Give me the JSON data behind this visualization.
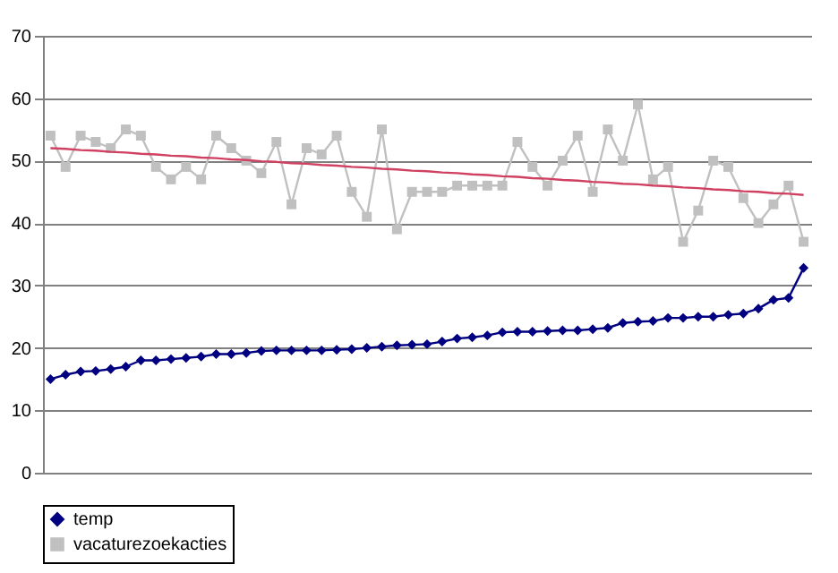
{
  "chart_data": {
    "type": "line",
    "categories": [
      null,
      null,
      null,
      null,
      null,
      null,
      null,
      null,
      null,
      null,
      null,
      null,
      null,
      null,
      null,
      null,
      null,
      null,
      null,
      null,
      null,
      null,
      null,
      null,
      null,
      null,
      null,
      null,
      null,
      null,
      null,
      null,
      null,
      null,
      null,
      null,
      null,
      null,
      null,
      null,
      null,
      null,
      null,
      null,
      null,
      null,
      null,
      null,
      null,
      null,
      null
    ],
    "ylim": [
      0,
      70
    ],
    "yticks": [
      0,
      10,
      20,
      30,
      40,
      50,
      60,
      70
    ],
    "grid": "y",
    "legend": "bottom",
    "tick_labels": "y",
    "line_style": "solid",
    "series": [
      {
        "name": "temp",
        "color": "#000080",
        "marker": "diamond",
        "values": [
          15,
          15.7,
          16.2,
          16.3,
          16.6,
          17,
          18,
          18,
          18.2,
          18.4,
          18.6,
          19,
          19,
          19.2,
          19.5,
          19.6,
          19.6,
          19.6,
          19.6,
          19.7,
          19.8,
          20,
          20.2,
          20.4,
          20.5,
          20.6,
          21,
          21.5,
          21.7,
          22,
          22.5,
          22.6,
          22.6,
          22.7,
          22.8,
          22.8,
          23,
          23.2,
          24,
          24.2,
          24.3,
          24.8,
          24.8,
          25,
          25,
          25.3,
          25.5,
          26.3,
          27.7,
          28,
          32.8
        ]
      },
      {
        "name": "vacaturezoekacties",
        "color": "#c0c0c0",
        "marker": "square",
        "values": [
          54,
          49,
          54,
          53,
          52,
          55,
          54,
          49,
          47,
          49,
          47,
          54,
          52,
          50,
          48,
          53,
          43,
          52,
          51,
          54,
          45,
          41,
          55,
          39,
          45,
          45,
          45,
          46,
          46,
          46,
          46,
          53,
          49,
          46,
          50,
          54,
          45,
          55,
          50,
          59,
          47,
          49,
          37,
          42,
          50,
          49,
          44,
          40,
          43,
          46,
          37
        ]
      },
      {
        "type": "line",
        "color": "#d04060",
        "marker": "none",
        "values": [
          52,
          51.9,
          51.7,
          51.6,
          51.4,
          51.3,
          51.1,
          51,
          50.8,
          50.7,
          50.5,
          50.4,
          50.2,
          50.1,
          49.9,
          49.8,
          49.6,
          49.5,
          49.3,
          49.2,
          49,
          48.9,
          48.7,
          48.6,
          48.4,
          48.3,
          48.1,
          48,
          47.8,
          47.7,
          47.5,
          47.4,
          47.2,
          47.1,
          46.9,
          46.8,
          46.6,
          46.5,
          46.3,
          46.2,
          46,
          45.9,
          45.7,
          45.6,
          45.4,
          45.3,
          45.1,
          45,
          44.8,
          44.7,
          44.5
        ]
      }
    ]
  }
}
